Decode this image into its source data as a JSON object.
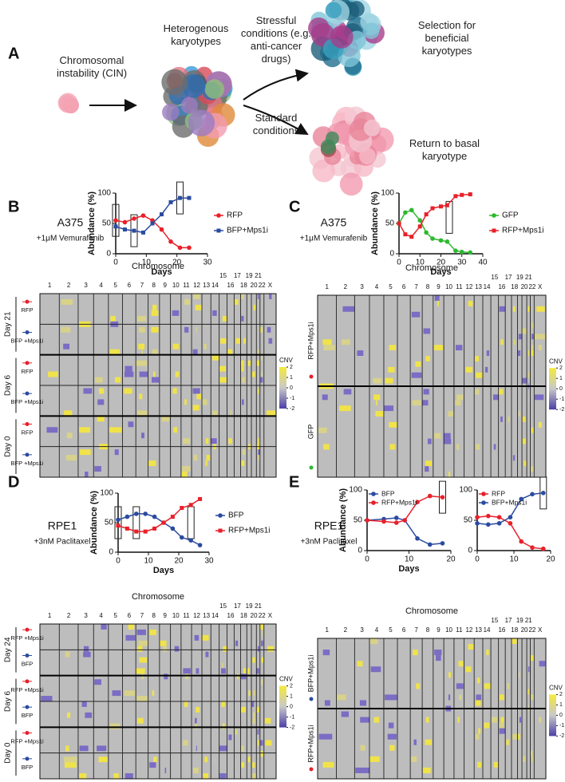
{
  "panel_labels": [
    "A",
    "B",
    "C",
    "D",
    "E"
  ],
  "diagram": {
    "cin": "Chromosomal instability (CIN)",
    "heterogenous": "Heterogenous karyotypes",
    "stressful": "Stressful conditions (e.g. anti-cancer drugs)",
    "standard": "Standard conditions",
    "selection": "Selection for beneficial karyotypes",
    "return": "Return to basal karyotype"
  },
  "chart_data": [
    {
      "type": "line",
      "title": "A375",
      "subtitle": "+1μM Vemurafenib",
      "y_label": "Abundance (%)",
      "x_label": "Days",
      "x": [
        0,
        3,
        6,
        9,
        12,
        15,
        18,
        21,
        24
      ],
      "xlim": [
        0,
        30
      ],
      "xticks": [
        0,
        10,
        20,
        30
      ],
      "ylim": [
        0,
        100
      ],
      "yticks": [
        0,
        50,
        100
      ],
      "legend": "right",
      "series": [
        {
          "name": "RFP",
          "color": "#e8202a",
          "marker": "circle",
          "values": [
            55,
            52,
            58,
            63,
            55,
            40,
            20,
            10,
            10
          ]
        },
        {
          "name": "BFP+Mps1i",
          "color": "#2b4ba0",
          "marker": "square",
          "values": [
            45,
            40,
            38,
            35,
            50,
            65,
            85,
            92,
            92
          ]
        }
      ]
    },
    {
      "type": "line",
      "title": "A375",
      "subtitle": "+1μM Vemurafenib",
      "y_label": "Abundance (%)",
      "x_label": "Days",
      "x": [
        0,
        3,
        6,
        10,
        13,
        16,
        20,
        23,
        27,
        30,
        34
      ],
      "xlim": [
        0,
        40
      ],
      "xticks": [
        0,
        10,
        20,
        30,
        40
      ],
      "ylim": [
        0,
        100
      ],
      "yticks": [
        0,
        50,
        100
      ],
      "legend": "right",
      "series": [
        {
          "name": "GFP",
          "color": "#2eb82e",
          "marker": "circle",
          "values": [
            50,
            68,
            72,
            55,
            35,
            25,
            22,
            20,
            5,
            3,
            2
          ]
        },
        {
          "name": "RFP+Mps1i",
          "color": "#e8202a",
          "marker": "square",
          "values": [
            50,
            32,
            28,
            45,
            65,
            75,
            78,
            80,
            95,
            97,
            98
          ]
        }
      ]
    },
    {
      "type": "line",
      "title": "RPE1",
      "subtitle": "+3nM Paclitaxel",
      "y_label": "Abundance (%)",
      "x_label": "Days",
      "x": [
        0,
        3,
        6,
        9,
        12,
        15,
        18,
        21,
        24,
        27
      ],
      "xlim": [
        0,
        30
      ],
      "xticks": [
        0,
        10,
        20,
        30
      ],
      "ylim": [
        0,
        100
      ],
      "yticks": [
        0,
        50,
        100
      ],
      "legend": "right",
      "series": [
        {
          "name": "BFP",
          "color": "#2b4ba0",
          "marker": "circle",
          "values": [
            55,
            60,
            65,
            65,
            60,
            50,
            40,
            25,
            20,
            12
          ]
        },
        {
          "name": "RFP+Mps1i",
          "color": "#e8202a",
          "marker": "square",
          "values": [
            45,
            40,
            35,
            35,
            40,
            50,
            60,
            75,
            80,
            90
          ]
        }
      ]
    },
    {
      "type": "line",
      "title": "RPE1",
      "subtitle": "+3nM Paclitaxel",
      "y_label": "Abundance (%)",
      "x_label": "Days",
      "x": [
        0,
        4,
        7,
        9,
        12,
        15,
        18
      ],
      "xlim": [
        0,
        20
      ],
      "xticks": [
        0,
        10,
        20
      ],
      "ylim": [
        0,
        100
      ],
      "yticks": [
        0,
        50,
        100
      ],
      "legend": "upper left",
      "series": [
        {
          "name": "BFP",
          "color": "#2b4ba0",
          "marker": "circle",
          "values": [
            50,
            52,
            54,
            50,
            20,
            10,
            12
          ]
        },
        {
          "name": "RFP+Mps1i",
          "color": "#e8202a",
          "marker": "circle",
          "values": [
            50,
            48,
            46,
            50,
            80,
            90,
            88
          ]
        }
      ]
    },
    {
      "type": "line",
      "x": [
        0,
        3,
        6,
        9,
        12,
        15,
        18
      ],
      "xlim": [
        0,
        20
      ],
      "xticks": [
        0,
        10,
        20
      ],
      "ylim": [
        0,
        100
      ],
      "yticks": [
        0,
        50,
        100
      ],
      "legend": "upper left",
      "series": [
        {
          "name": "RFP",
          "color": "#e8202a",
          "marker": "circle",
          "values": [
            55,
            57,
            55,
            45,
            15,
            5,
            3
          ]
        },
        {
          "name": "BFP+Mps1i",
          "color": "#2b4ba0",
          "marker": "circle",
          "values": [
            45,
            43,
            45,
            55,
            85,
            93,
            95
          ]
        }
      ]
    }
  ],
  "heatmaps": [
    {
      "heading": "Chromosome",
      "chromosomes": [
        "1",
        "2",
        "3",
        "4",
        "5",
        "6",
        "7",
        "8",
        "9",
        "10",
        "11",
        "12",
        "13",
        "14",
        "15",
        "16",
        "17",
        "18",
        "19",
        "20",
        "21",
        "22",
        "X"
      ],
      "days": [
        {
          "day": "Day 21",
          "rows": [
            "RFP",
            "BFP +Mps1i"
          ]
        },
        {
          "day": "Day 6",
          "rows": [
            "RFP",
            "BFP +Mps1i"
          ]
        },
        {
          "day": "Day 0",
          "rows": [
            "RFP",
            "BFP +Mps1i"
          ]
        }
      ],
      "colorbar": {
        "label": "CNV",
        "ticks": [
          2,
          1,
          0,
          -1,
          -2
        ]
      }
    },
    {
      "heading": "Chromosome",
      "chromosomes": [
        "1",
        "2",
        "3",
        "4",
        "5",
        "6",
        "7",
        "8",
        "9",
        "10",
        "11",
        "12",
        "13",
        "14",
        "15",
        "16",
        "17",
        "18",
        "19",
        "20",
        "21",
        "22",
        "X"
      ],
      "groups": [
        "RFP+Mps1i",
        "GFP"
      ],
      "colorbar": {
        "label": "CNV",
        "ticks": [
          2,
          1,
          0,
          -1,
          -2
        ]
      }
    },
    {
      "heading": "Chromosome",
      "chromosomes": [
        "1",
        "2",
        "3",
        "4",
        "5",
        "6",
        "7",
        "8",
        "9",
        "10",
        "11",
        "12",
        "13",
        "14",
        "15",
        "16",
        "17",
        "18",
        "19",
        "20",
        "21",
        "22",
        "X"
      ],
      "days": [
        {
          "day": "Day 24",
          "rows": [
            "RFP +Mps1i",
            "BFP"
          ]
        },
        {
          "day": "Day 6",
          "rows": [
            "RFP +Mps1i",
            "BFP"
          ]
        },
        {
          "day": "Day 0",
          "rows": [
            "RFP +Mps1i",
            "BFP"
          ]
        }
      ],
      "colorbar": {
        "label": "CNV",
        "ticks": [
          2,
          1,
          0,
          -1,
          -2
        ]
      }
    },
    {
      "heading": "Chromosome",
      "chromosomes": [
        "1",
        "2",
        "3",
        "4",
        "5",
        "6",
        "7",
        "8",
        "9",
        "10",
        "11",
        "12",
        "13",
        "14",
        "15",
        "16",
        "17",
        "18",
        "19",
        "20",
        "21",
        "22",
        "X"
      ],
      "groups": [
        "BFP+Mps1i",
        "RFP+Mps1i"
      ],
      "colorbar": {
        "label": "CNV",
        "ticks": [
          2,
          1,
          0,
          -1,
          -2
        ]
      }
    }
  ]
}
